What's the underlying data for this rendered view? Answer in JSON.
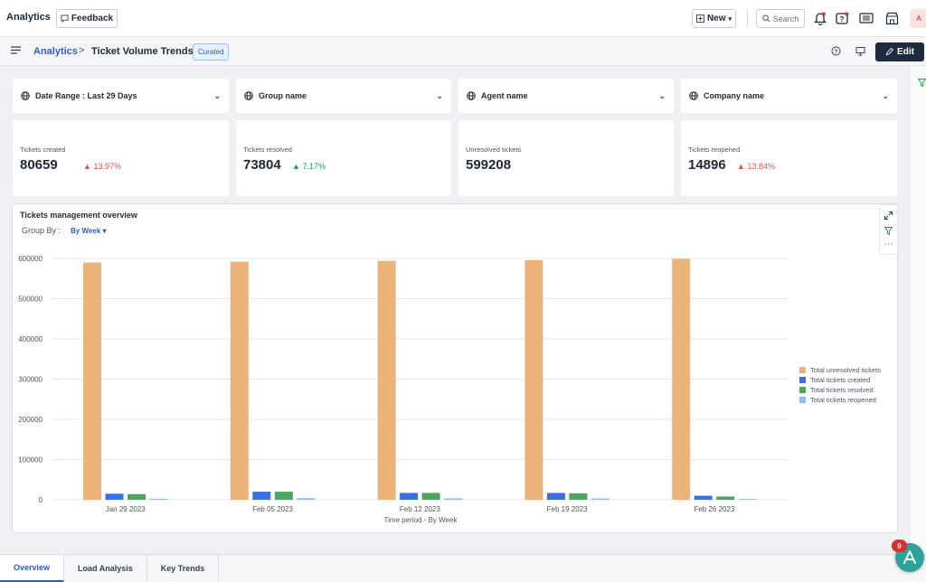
{
  "app": {
    "title": "Analytics",
    "feedback_label": "Feedback"
  },
  "topbar": {
    "new_label": "New",
    "search_placeholder": "Search",
    "avatar_initial": "A"
  },
  "breadcrumb": {
    "root": "Analytics",
    "separator": ">",
    "current": "Ticket Volume Trends",
    "badge": "Curated"
  },
  "actions": {
    "edit_label": "Edit"
  },
  "filters": [
    {
      "label": "Date Range : ",
      "value": "Last 29 Days"
    },
    {
      "label": "Group name",
      "value": ""
    },
    {
      "label": "Agent name",
      "value": ""
    },
    {
      "label": "Company name",
      "value": ""
    }
  ],
  "kpis": [
    {
      "label": "Tickets created",
      "value": "80659",
      "change": "13.97%",
      "trend": "up-red"
    },
    {
      "label": "Tickets resolved",
      "value": "73804",
      "change": "7.17%",
      "trend": "up-green"
    },
    {
      "label": "Unresolved tickets",
      "value": "599208",
      "change": "",
      "trend": ""
    },
    {
      "label": "Tickets reopened",
      "value": "14896",
      "change": "13.84%",
      "trend": "up-red"
    }
  ],
  "chart_panel": {
    "title": "Tickets management overview",
    "group_by_label": "Group By :",
    "group_by_value": "By Week"
  },
  "chart_data": {
    "type": "bar",
    "categories": [
      "Jan 29 2023",
      "Feb 05 2023",
      "Feb 12 2023",
      "Feb 19 2023",
      "Feb 26 2023"
    ],
    "xlabel": "Time period - By Week",
    "ylabel": "",
    "ylim": [
      0,
      600000
    ],
    "yticks": [
      0,
      100000,
      200000,
      300000,
      400000,
      500000,
      600000
    ],
    "grid": true,
    "legend_position": "right",
    "series": [
      {
        "name": "Total unresolved tickets",
        "color": "#ebb27a",
        "values": [
          590000,
          592000,
          594000,
          596000,
          599000
        ]
      },
      {
        "name": "Total tickets created",
        "color": "#3b6fe0",
        "values": [
          15000,
          20000,
          17000,
          17000,
          10000
        ]
      },
      {
        "name": "Total tickets resolved",
        "color": "#4fa25f",
        "values": [
          14000,
          20000,
          17000,
          16000,
          8000
        ]
      },
      {
        "name": "Total tickets reopened",
        "color": "#8dbbf5",
        "values": [
          2500,
          4000,
          3500,
          3000,
          2000
        ]
      }
    ]
  },
  "tabs": [
    {
      "label": "Overview",
      "active": true
    },
    {
      "label": "Load Analysis",
      "active": false
    },
    {
      "label": "Key Trends",
      "active": false
    }
  ],
  "fab": {
    "badge_count": "9"
  }
}
